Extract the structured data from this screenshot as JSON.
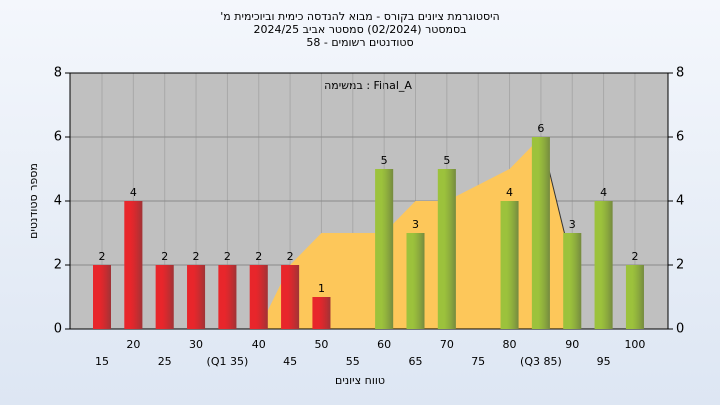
{
  "chart_data": {
    "type": "bar",
    "title": "'היסטוגרמת ציונים בקורס - מבוא להנדסה כימית וביוכימית מ",
    "subtitle": "בסמסטר  (02/2024)  סמסטר אביב 2024/25",
    "subtitle2": "סטודנטים רשומים - 58",
    "annotation": "במשימה : Final_A",
    "xlabel": "טווח ציונים",
    "ylabel": "מספר סטודנטים",
    "categories": [
      "15",
      "20",
      "25",
      "30",
      "(Q1 35)",
      "40",
      "45",
      "50",
      "55",
      "60",
      "65",
      "70",
      "75",
      "80",
      "(Q3 85)",
      "90",
      "95",
      "100"
    ],
    "series": [
      {
        "color": "#e8262b",
        "values": [
          2,
          4,
          2,
          2,
          2,
          2,
          2,
          1,
          null,
          null,
          null,
          null,
          null,
          null,
          null,
          null,
          null,
          null
        ]
      },
      {
        "color": "#9cc23c",
        "values": [
          null,
          null,
          null,
          null,
          null,
          null,
          null,
          null,
          null,
          5,
          3,
          5,
          null,
          4,
          6,
          3,
          4,
          2
        ]
      }
    ],
    "area": {
      "color": "#fdc75a",
      "values": [
        null,
        null,
        null,
        null,
        null,
        0,
        2,
        3,
        3,
        3,
        4,
        4,
        4.5,
        5,
        6,
        2,
        null,
        null
      ]
    },
    "ylim": [
      0,
      8
    ],
    "yticks": [
      0,
      2,
      4,
      6,
      8
    ],
    "grid": true
  }
}
